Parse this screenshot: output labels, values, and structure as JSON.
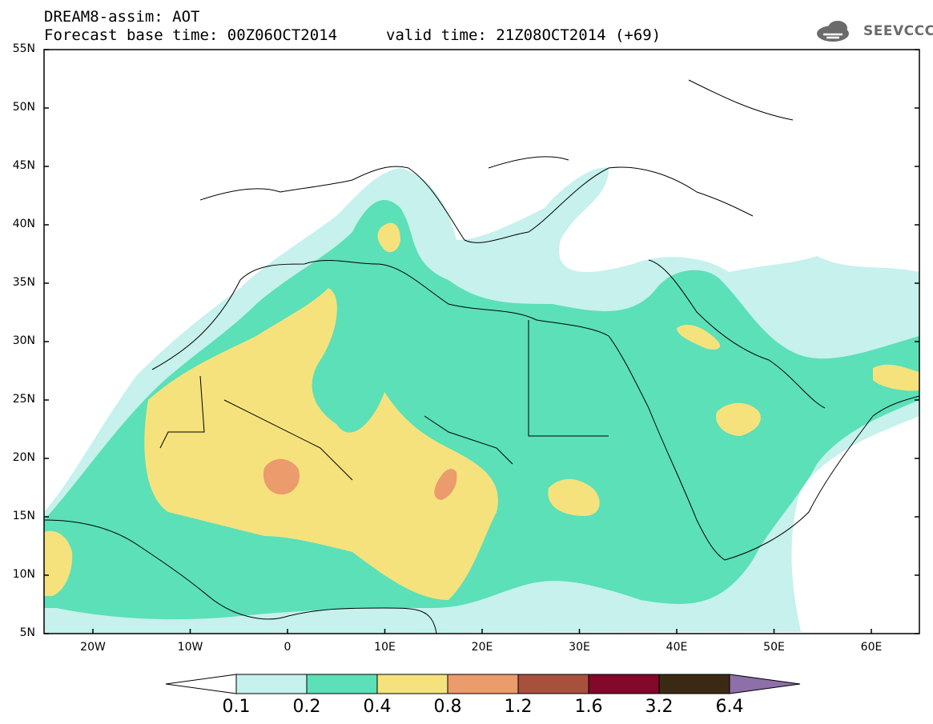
{
  "header": {
    "title": "DREAM8-assim: AOT",
    "base_time": "Forecast base time: 00Z06OCT2014",
    "valid_time": "valid time: 21Z08OCT2014 (+69)"
  },
  "logo": {
    "text": "SEEVCCC",
    "icon": "cloud-icon"
  },
  "map": {
    "lat_labels": [
      "55N",
      "50N",
      "45N",
      "40N",
      "35N",
      "30N",
      "25N",
      "20N",
      "15N",
      "10N",
      "5N"
    ],
    "lon_labels": [
      "20W",
      "10W",
      "0",
      "10E",
      "20E",
      "30E",
      "40E",
      "50E",
      "60E"
    ]
  },
  "colorbar": {
    "levels": [
      "0.1",
      "0.2",
      "0.4",
      "0.8",
      "1.2",
      "1.6",
      "3.2",
      "6.4"
    ],
    "colors": [
      "#c6f1ec",
      "#5be0b8",
      "#f5e27d",
      "#eb9b6c",
      "#a7513c",
      "#83082a",
      "#3a2a14",
      "#8e6fa8"
    ]
  }
}
